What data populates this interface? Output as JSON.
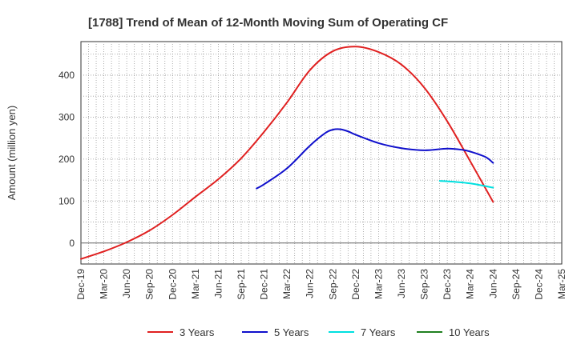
{
  "chart_data": {
    "type": "line",
    "title": "[1788]  Trend of Mean of 12-Month Moving Sum of Operating CF",
    "xlabel": "",
    "ylabel": "Amount (million yen)",
    "ylim": [
      -50,
      480
    ],
    "yticks": [
      0,
      100,
      200,
      300,
      400
    ],
    "x_tick_labels": [
      "Dec-19",
      "Mar-20",
      "Jun-20",
      "Sep-20",
      "Dec-20",
      "Mar-21",
      "Jun-21",
      "Sep-21",
      "Dec-21",
      "Mar-22",
      "Jun-22",
      "Sep-22",
      "Dec-22",
      "Mar-23",
      "Jun-23",
      "Sep-23",
      "Dec-23",
      "Mar-24",
      "Jun-24",
      "Sep-24",
      "Dec-24",
      "Mar-25"
    ],
    "grid": true,
    "legend_position": "bottom",
    "series": [
      {
        "name": "3 Years",
        "color": "#e02020",
        "points": [
          [
            0,
            -38
          ],
          [
            1,
            -20
          ],
          [
            2,
            2
          ],
          [
            3,
            30
          ],
          [
            4,
            67
          ],
          [
            5,
            110
          ],
          [
            6,
            152
          ],
          [
            7,
            202
          ],
          [
            8,
            265
          ],
          [
            9,
            335
          ],
          [
            10,
            412
          ],
          [
            11,
            457
          ],
          [
            12,
            468
          ],
          [
            13,
            455
          ],
          [
            14,
            425
          ],
          [
            15,
            370
          ],
          [
            16,
            290
          ],
          [
            17,
            195
          ],
          [
            18,
            98
          ]
        ]
      },
      {
        "name": "5 Years",
        "color": "#1010cc",
        "points": [
          [
            7.67,
            130
          ],
          [
            8,
            140
          ],
          [
            9,
            178
          ],
          [
            10,
            232
          ],
          [
            10.67,
            262
          ],
          [
            11,
            270
          ],
          [
            11.33,
            271
          ],
          [
            11.67,
            266
          ],
          [
            12,
            258
          ],
          [
            13,
            238
          ],
          [
            14,
            226
          ],
          [
            15,
            221
          ],
          [
            16,
            225
          ],
          [
            16.67,
            222
          ],
          [
            17,
            218
          ],
          [
            17.67,
            205
          ],
          [
            18,
            191
          ]
        ]
      },
      {
        "name": "7 Years",
        "color": "#00e0e0",
        "points": [
          [
            15.67,
            148
          ],
          [
            16,
            147
          ],
          [
            17,
            142
          ],
          [
            18,
            132
          ]
        ]
      },
      {
        "name": "10 Years",
        "color": "#208020",
        "points": []
      }
    ]
  }
}
